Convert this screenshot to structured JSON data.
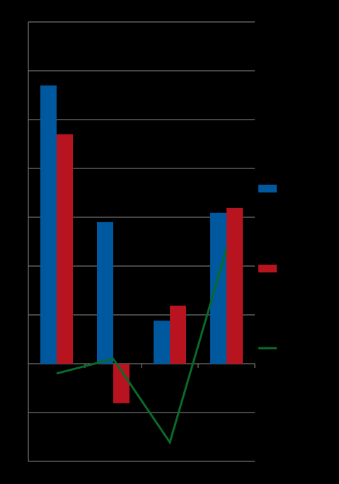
{
  "chart_data": {
    "type": "bar-line",
    "categories": [
      null,
      null,
      null,
      null
    ],
    "series": [
      {
        "type": "bar",
        "color": "#00589f",
        "values": [
          5.7,
          2.9,
          0.88,
          3.09
        ]
      },
      {
        "type": "bar",
        "color": "#b8141f",
        "values": [
          4.7,
          -0.81,
          1.19,
          3.19
        ]
      },
      {
        "type": "line",
        "color": "#0a6a2a",
        "values": [
          -0.2,
          0.1,
          -1.61,
          2.35
        ]
      }
    ],
    "ylim": [
      -2,
      7
    ],
    "yticks": [
      -2,
      -1,
      0,
      1,
      2,
      3,
      4,
      5,
      6,
      7
    ],
    "grid": true,
    "legend": "right"
  }
}
